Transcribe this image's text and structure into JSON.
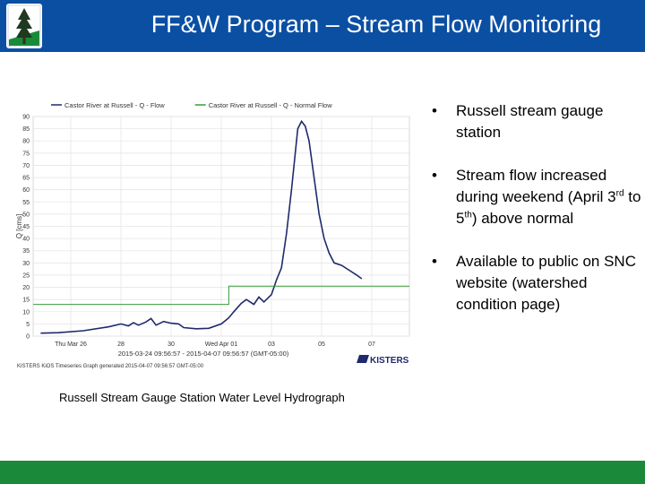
{
  "header": {
    "title": "FF&W Program – Stream Flow Monitoring",
    "logo_icon": "pine-tree-logo-icon",
    "bg_color": "#0b4fa3"
  },
  "footer": {
    "bg_color": "#1a8a3a"
  },
  "bullets": [
    {
      "text": "Russell stream gauge station"
    },
    {
      "pre": "Stream flow increased during weekend (April 3",
      "sup1": "rd",
      "mid": " to 5",
      "sup2": "th",
      "post": ") above normal"
    },
    {
      "text": "Available to public on SNC website (watershed condition page)"
    }
  ],
  "caption": "Russell Stream Gauge Station Water Level Hydrograph",
  "chart_data": {
    "type": "line",
    "legend_position": "top",
    "ylabel": "Q [cms]",
    "ylim": [
      0,
      90
    ],
    "yticks": [
      0,
      5,
      10,
      15,
      20,
      25,
      30,
      35,
      40,
      45,
      50,
      55,
      60,
      65,
      70,
      75,
      80,
      85,
      90
    ],
    "xlim": [
      0,
      15
    ],
    "xticks": [
      {
        "x": 1.5,
        "label": "Thu Mar 26"
      },
      {
        "x": 3.5,
        "label": "28"
      },
      {
        "x": 5.5,
        "label": "30"
      },
      {
        "x": 7.5,
        "label": "Wed Apr 01"
      },
      {
        "x": 9.5,
        "label": "03"
      },
      {
        "x": 11.5,
        "label": "05"
      },
      {
        "x": 13.5,
        "label": "07"
      }
    ],
    "date_range": "2015-03-24 09:56:57 - 2015-04-07 09:56:57 (GMT-05:00)",
    "source_note": "KISTERS KiOS Timeseries Graph generated 2015-04-07 09:56:57 GMT-05:00",
    "brand": "KISTERS",
    "grid": true,
    "series": [
      {
        "name": "Castor River at Russell - Q - Flow",
        "color": "#1f2a6b",
        "points": [
          [
            0.3,
            1.2
          ],
          [
            1,
            1.4
          ],
          [
            2,
            2.2
          ],
          [
            3,
            3.8
          ],
          [
            3.5,
            5
          ],
          [
            3.8,
            4.2
          ],
          [
            4,
            5.5
          ],
          [
            4.2,
            4.5
          ],
          [
            4.5,
            5.8
          ],
          [
            4.7,
            7.2
          ],
          [
            4.9,
            4.5
          ],
          [
            5.2,
            6
          ],
          [
            5.5,
            5.3
          ],
          [
            5.8,
            5
          ],
          [
            6,
            3.5
          ],
          [
            6.5,
            3
          ],
          [
            7,
            3.2
          ],
          [
            7.5,
            5
          ],
          [
            7.8,
            7.5
          ],
          [
            8,
            10
          ],
          [
            8.3,
            13.5
          ],
          [
            8.5,
            15
          ],
          [
            8.8,
            13
          ],
          [
            9,
            16
          ],
          [
            9.2,
            14
          ],
          [
            9.5,
            17
          ],
          [
            9.7,
            23
          ],
          [
            9.9,
            28
          ],
          [
            10.1,
            42
          ],
          [
            10.3,
            60
          ],
          [
            10.45,
            75
          ],
          [
            10.55,
            85
          ],
          [
            10.7,
            88
          ],
          [
            10.85,
            86
          ],
          [
            11,
            80
          ],
          [
            11.2,
            65
          ],
          [
            11.4,
            50
          ],
          [
            11.6,
            40
          ],
          [
            11.8,
            34
          ],
          [
            12,
            30
          ],
          [
            12.3,
            29
          ],
          [
            12.6,
            27
          ],
          [
            12.9,
            25
          ],
          [
            13.1,
            23.5
          ]
        ]
      },
      {
        "name": "Castor River at Russell - Q - Normal Flow",
        "color": "#3a9a3a",
        "points": [
          [
            0,
            13
          ],
          [
            7.8,
            13
          ],
          [
            7.8,
            20.5
          ],
          [
            15,
            20.5
          ]
        ]
      }
    ]
  }
}
